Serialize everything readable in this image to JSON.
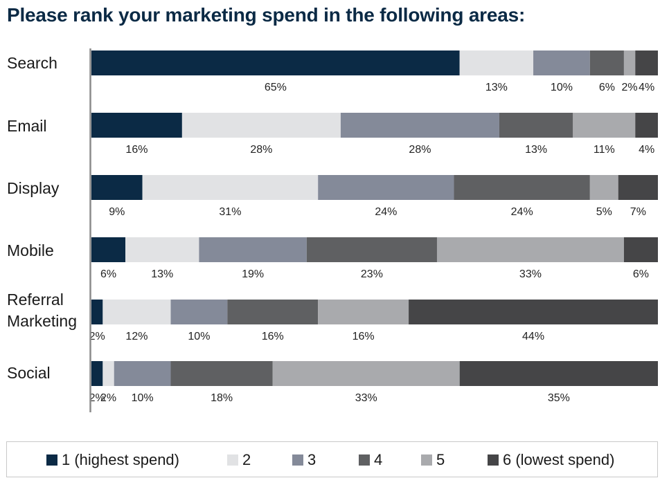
{
  "chart_data": {
    "type": "bar",
    "orientation": "horizontal",
    "stacked": true,
    "title": "Please rank your marketing spend in the following areas:",
    "categories": [
      "Search",
      "Email",
      "Display",
      "Mobile",
      "Referral Marketing",
      "Social"
    ],
    "series": [
      {
        "name": "1 (highest spend)",
        "color": "#0b2a45",
        "values": [
          65,
          16,
          9,
          6,
          2,
          2
        ]
      },
      {
        "name": "2",
        "color": "#e1e2e4",
        "values": [
          13,
          28,
          31,
          13,
          12,
          2
        ]
      },
      {
        "name": "3",
        "color": "#848a99",
        "values": [
          10,
          28,
          24,
          19,
          10,
          10
        ]
      },
      {
        "name": "4",
        "color": "#5f6062",
        "values": [
          6,
          13,
          24,
          23,
          16,
          18
        ]
      },
      {
        "name": "5",
        "color": "#a9aaad",
        "values": [
          2,
          11,
          5,
          33,
          16,
          33
        ]
      },
      {
        "name": "6 (lowest spend)",
        "color": "#454547",
        "values": [
          4,
          4,
          7,
          6,
          44,
          35
        ]
      }
    ],
    "value_suffix": "%",
    "xlim": [
      0,
      100
    ],
    "grid": false,
    "legend_position": "bottom"
  }
}
